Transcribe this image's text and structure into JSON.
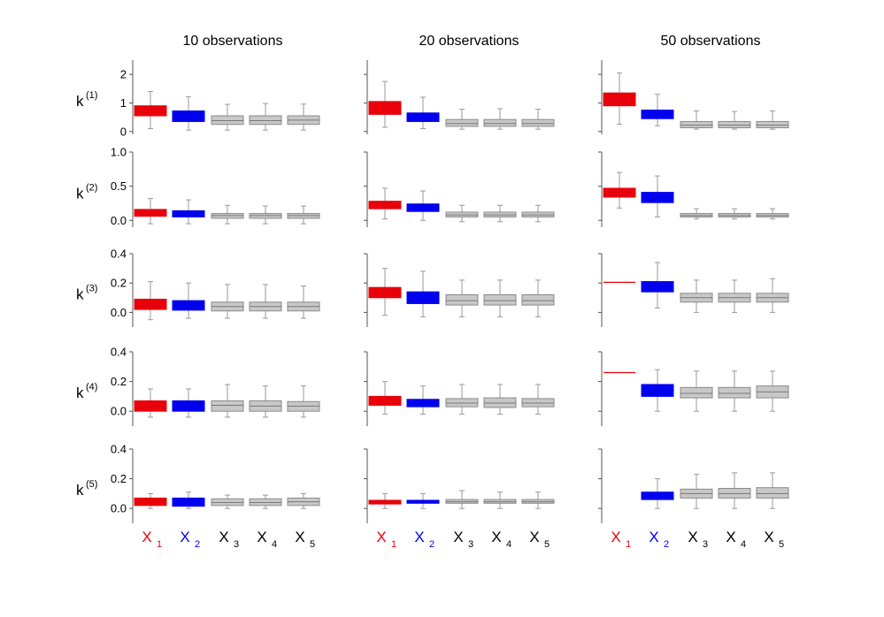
{
  "chart_data": {
    "type": "box",
    "columns": [
      "10 observations",
      "20 observations",
      "50 observations"
    ],
    "rows": [
      {
        "label": "k",
        "sup": "(1)",
        "ticks": [
          "0",
          "1",
          "2"
        ],
        "ylim": [
          -0.1,
          2.5
        ],
        "tick_values": [
          0,
          1,
          2
        ]
      },
      {
        "label": "k",
        "sup": "(2)",
        "ticks": [
          "0.0",
          "0.5",
          "1.0"
        ],
        "ylim": [
          -0.1,
          1.0
        ],
        "tick_values": [
          0,
          0.5,
          1.0
        ]
      },
      {
        "label": "k",
        "sup": "(3)",
        "ticks": [
          "0.0",
          "0.2",
          "0.4"
        ],
        "ylim": [
          -0.1,
          0.4
        ],
        "tick_values": [
          0,
          0.2,
          0.4
        ]
      },
      {
        "label": "k",
        "sup": "(4)",
        "ticks": [
          "0.0",
          "0.2",
          "0.4"
        ],
        "ylim": [
          -0.1,
          0.4
        ],
        "tick_values": [
          0,
          0.2,
          0.4
        ]
      },
      {
        "label": "k",
        "sup": "(5)",
        "ticks": [
          "0.0",
          "0.2",
          "0.4"
        ],
        "ylim": [
          -0.1,
          0.4
        ],
        "tick_values": [
          0,
          0.2,
          0.4
        ]
      }
    ],
    "x_labels": [
      {
        "base": "X",
        "sub": "1",
        "color": "#e8000b"
      },
      {
        "base": "X",
        "sub": "2",
        "color": "#0000ee"
      },
      {
        "base": "X",
        "sub": "3",
        "color": "#000000"
      },
      {
        "base": "X",
        "sub": "4",
        "color": "#000000"
      },
      {
        "base": "X",
        "sub": "5",
        "color": "#000000"
      }
    ],
    "series_colors": [
      "#e8000b",
      "#0000ee",
      "#c8c8c8",
      "#c8c8c8",
      "#c8c8c8"
    ],
    "boxes": [
      [
        [
          {
            "wl": 0.1,
            "q1": 0.55,
            "med": 0.72,
            "q3": 0.9,
            "wh": 1.4
          },
          {
            "wl": 0.05,
            "q1": 0.35,
            "med": 0.5,
            "q3": 0.72,
            "wh": 1.22
          },
          {
            "wl": 0.05,
            "q1": 0.25,
            "med": 0.38,
            "q3": 0.55,
            "wh": 0.95
          },
          {
            "wl": 0.05,
            "q1": 0.25,
            "med": 0.38,
            "q3": 0.55,
            "wh": 0.98
          },
          {
            "wl": 0.05,
            "q1": 0.25,
            "med": 0.4,
            "q3": 0.55,
            "wh": 0.96
          }
        ],
        [
          {
            "wl": 0.15,
            "q1": 0.6,
            "med": 0.8,
            "q3": 1.05,
            "wh": 1.75
          },
          {
            "wl": 0.1,
            "q1": 0.35,
            "med": 0.5,
            "q3": 0.65,
            "wh": 1.2
          },
          {
            "wl": 0.08,
            "q1": 0.18,
            "med": 0.28,
            "q3": 0.42,
            "wh": 0.78
          },
          {
            "wl": 0.08,
            "q1": 0.18,
            "med": 0.28,
            "q3": 0.42,
            "wh": 0.8
          },
          {
            "wl": 0.08,
            "q1": 0.18,
            "med": 0.28,
            "q3": 0.42,
            "wh": 0.78
          }
        ],
        [
          {
            "wl": 0.25,
            "q1": 0.9,
            "med": 1.12,
            "q3": 1.35,
            "wh": 2.05
          },
          {
            "wl": 0.2,
            "q1": 0.45,
            "med": 0.6,
            "q3": 0.75,
            "wh": 1.3
          },
          {
            "wl": 0.08,
            "q1": 0.13,
            "med": 0.22,
            "q3": 0.35,
            "wh": 0.72
          },
          {
            "wl": 0.08,
            "q1": 0.13,
            "med": 0.22,
            "q3": 0.35,
            "wh": 0.7
          },
          {
            "wl": 0.08,
            "q1": 0.13,
            "med": 0.22,
            "q3": 0.35,
            "wh": 0.72
          }
        ]
      ],
      [
        [
          {
            "wl": -0.05,
            "q1": 0.06,
            "med": 0.11,
            "q3": 0.16,
            "wh": 0.32
          },
          {
            "wl": -0.05,
            "q1": 0.05,
            "med": 0.09,
            "q3": 0.14,
            "wh": 0.3
          },
          {
            "wl": -0.05,
            "q1": 0.03,
            "med": 0.07,
            "q3": 0.1,
            "wh": 0.22
          },
          {
            "wl": -0.05,
            "q1": 0.03,
            "med": 0.07,
            "q3": 0.1,
            "wh": 0.21
          },
          {
            "wl": -0.05,
            "q1": 0.03,
            "med": 0.07,
            "q3": 0.1,
            "wh": 0.21
          }
        ],
        [
          {
            "wl": 0.02,
            "q1": 0.17,
            "med": 0.22,
            "q3": 0.28,
            "wh": 0.47
          },
          {
            "wl": 0.0,
            "q1": 0.13,
            "med": 0.18,
            "q3": 0.24,
            "wh": 0.43
          },
          {
            "wl": -0.02,
            "q1": 0.05,
            "med": 0.08,
            "q3": 0.12,
            "wh": 0.22
          },
          {
            "wl": -0.02,
            "q1": 0.05,
            "med": 0.08,
            "q3": 0.12,
            "wh": 0.22
          },
          {
            "wl": -0.02,
            "q1": 0.05,
            "med": 0.08,
            "q3": 0.12,
            "wh": 0.22
          }
        ],
        [
          {
            "wl": 0.18,
            "q1": 0.34,
            "med": 0.41,
            "q3": 0.47,
            "wh": 0.7
          },
          {
            "wl": 0.05,
            "q1": 0.26,
            "med": 0.32,
            "q3": 0.41,
            "wh": 0.65
          },
          {
            "wl": 0.02,
            "q1": 0.05,
            "med": 0.07,
            "q3": 0.1,
            "wh": 0.17
          },
          {
            "wl": 0.02,
            "q1": 0.05,
            "med": 0.07,
            "q3": 0.1,
            "wh": 0.17
          },
          {
            "wl": 0.02,
            "q1": 0.05,
            "med": 0.07,
            "q3": 0.1,
            "wh": 0.17
          }
        ]
      ],
      [
        [
          {
            "wl": -0.05,
            "q1": 0.02,
            "med": 0.055,
            "q3": 0.09,
            "wh": 0.21
          },
          {
            "wl": -0.04,
            "q1": 0.015,
            "med": 0.045,
            "q3": 0.08,
            "wh": 0.2
          },
          {
            "wl": -0.04,
            "q1": 0.01,
            "med": 0.04,
            "q3": 0.07,
            "wh": 0.19
          },
          {
            "wl": -0.04,
            "q1": 0.01,
            "med": 0.04,
            "q3": 0.07,
            "wh": 0.19
          },
          {
            "wl": -0.04,
            "q1": 0.01,
            "med": 0.04,
            "q3": 0.07,
            "wh": 0.18
          }
        ],
        [
          {
            "wl": -0.02,
            "q1": 0.1,
            "med": 0.13,
            "q3": 0.17,
            "wh": 0.3
          },
          {
            "wl": -0.03,
            "q1": 0.06,
            "med": 0.1,
            "q3": 0.14,
            "wh": 0.28
          },
          {
            "wl": -0.03,
            "q1": 0.05,
            "med": 0.08,
            "q3": 0.12,
            "wh": 0.22
          },
          {
            "wl": -0.03,
            "q1": 0.05,
            "med": 0.08,
            "q3": 0.12,
            "wh": 0.22
          },
          {
            "wl": -0.03,
            "q1": 0.05,
            "med": 0.08,
            "q3": 0.12,
            "wh": 0.22
          }
        ],
        [
          {
            "wl": 0.205,
            "q1": 0.205,
            "med": 0.205,
            "q3": 0.205,
            "wh": 0.205
          },
          {
            "wl": 0.03,
            "q1": 0.14,
            "med": 0.18,
            "q3": 0.21,
            "wh": 0.34
          },
          {
            "wl": 0.0,
            "q1": 0.07,
            "med": 0.1,
            "q3": 0.13,
            "wh": 0.22
          },
          {
            "wl": 0.0,
            "q1": 0.07,
            "med": 0.1,
            "q3": 0.13,
            "wh": 0.22
          },
          {
            "wl": 0.0,
            "q1": 0.07,
            "med": 0.1,
            "q3": 0.13,
            "wh": 0.23
          }
        ]
      ],
      [
        [
          {
            "wl": -0.04,
            "q1": 0.0,
            "med": 0.04,
            "q3": 0.07,
            "wh": 0.15
          },
          {
            "wl": -0.04,
            "q1": 0.0,
            "med": 0.04,
            "q3": 0.07,
            "wh": 0.15
          },
          {
            "wl": -0.04,
            "q1": 0.0,
            "med": 0.04,
            "q3": 0.07,
            "wh": 0.18
          },
          {
            "wl": -0.04,
            "q1": 0.0,
            "med": 0.035,
            "q3": 0.07,
            "wh": 0.17
          },
          {
            "wl": -0.04,
            "q1": 0.0,
            "med": 0.035,
            "q3": 0.065,
            "wh": 0.17
          }
        ],
        [
          {
            "wl": -0.02,
            "q1": 0.04,
            "med": 0.07,
            "q3": 0.1,
            "wh": 0.2
          },
          {
            "wl": -0.02,
            "q1": 0.03,
            "med": 0.06,
            "q3": 0.08,
            "wh": 0.17
          },
          {
            "wl": -0.02,
            "q1": 0.03,
            "med": 0.055,
            "q3": 0.085,
            "wh": 0.18
          },
          {
            "wl": -0.02,
            "q1": 0.025,
            "med": 0.055,
            "q3": 0.09,
            "wh": 0.18
          },
          {
            "wl": -0.02,
            "q1": 0.03,
            "med": 0.055,
            "q3": 0.085,
            "wh": 0.18
          }
        ],
        [
          {
            "wl": 0.26,
            "q1": 0.26,
            "med": 0.26,
            "q3": 0.26,
            "wh": 0.26
          },
          {
            "wl": 0.0,
            "q1": 0.1,
            "med": 0.13,
            "q3": 0.18,
            "wh": 0.28
          },
          {
            "wl": 0.0,
            "q1": 0.09,
            "med": 0.12,
            "q3": 0.16,
            "wh": 0.27
          },
          {
            "wl": 0.0,
            "q1": 0.09,
            "med": 0.12,
            "q3": 0.16,
            "wh": 0.27
          },
          {
            "wl": 0.0,
            "q1": 0.09,
            "med": 0.13,
            "q3": 0.17,
            "wh": 0.27
          }
        ]
      ],
      [
        [
          {
            "wl": 0.0,
            "q1": 0.02,
            "med": 0.045,
            "q3": 0.07,
            "wh": 0.1
          },
          {
            "wl": 0.0,
            "q1": 0.015,
            "med": 0.04,
            "q3": 0.07,
            "wh": 0.11
          },
          {
            "wl": 0.0,
            "q1": 0.02,
            "med": 0.04,
            "q3": 0.065,
            "wh": 0.09
          },
          {
            "wl": 0.0,
            "q1": 0.02,
            "med": 0.04,
            "q3": 0.065,
            "wh": 0.09
          },
          {
            "wl": 0.0,
            "q1": 0.02,
            "med": 0.045,
            "q3": 0.07,
            "wh": 0.1
          }
        ],
        [
          {
            "wl": 0.0,
            "q1": 0.03,
            "med": 0.04,
            "q3": 0.055,
            "wh": 0.1
          },
          {
            "wl": 0.0,
            "q1": 0.035,
            "med": 0.045,
            "q3": 0.055,
            "wh": 0.1
          },
          {
            "wl": 0.0,
            "q1": 0.035,
            "med": 0.045,
            "q3": 0.06,
            "wh": 0.12
          },
          {
            "wl": 0.0,
            "q1": 0.035,
            "med": 0.045,
            "q3": 0.06,
            "wh": 0.11
          },
          {
            "wl": 0.0,
            "q1": 0.035,
            "med": 0.045,
            "q3": 0.06,
            "wh": 0.11
          }
        ],
        [
          null,
          {
            "wl": 0.0,
            "q1": 0.06,
            "med": 0.08,
            "q3": 0.11,
            "wh": 0.2
          },
          {
            "wl": 0.0,
            "q1": 0.07,
            "med": 0.1,
            "q3": 0.13,
            "wh": 0.23
          },
          {
            "wl": 0.0,
            "q1": 0.07,
            "med": 0.1,
            "q3": 0.135,
            "wh": 0.24
          },
          {
            "wl": 0.0,
            "q1": 0.07,
            "med": 0.1,
            "q3": 0.14,
            "wh": 0.24
          }
        ]
      ]
    ]
  }
}
